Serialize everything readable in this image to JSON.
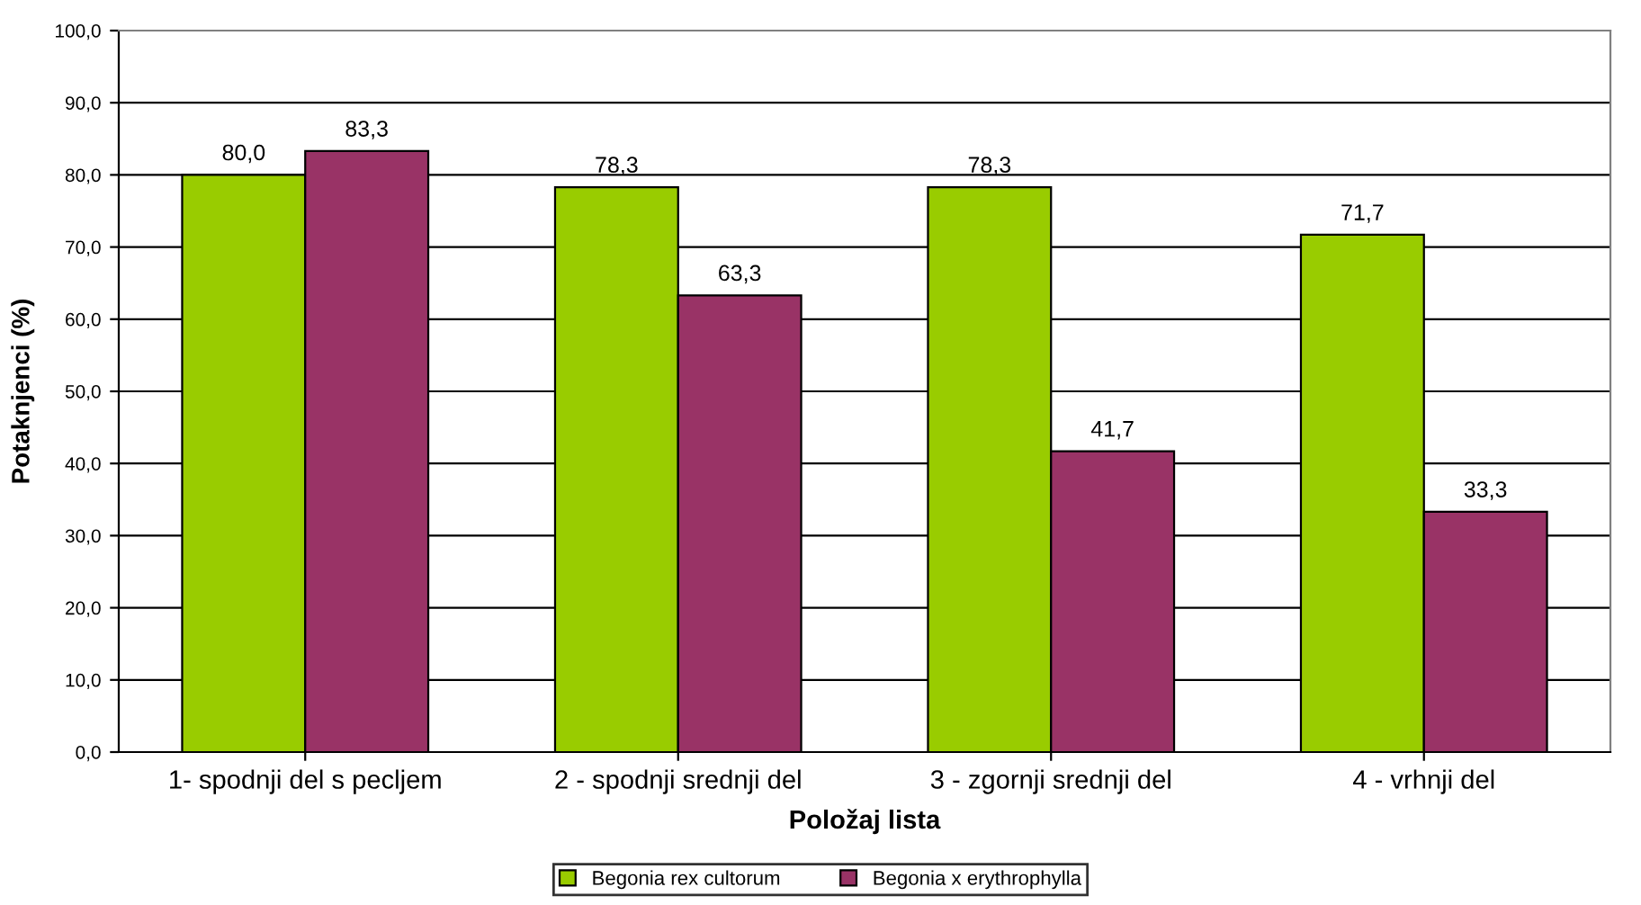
{
  "chart_data": {
    "type": "bar",
    "xlabel": "Položaj lista",
    "ylabel": "Potaknjenci (%)",
    "categories": [
      "1- spodnji del s pecljem",
      "2 - spodnji srednji del",
      "3 - zgornji srednji del",
      "4 - vrhnji del"
    ],
    "series": [
      {
        "name": "Begonia rex cultorum",
        "color": "#99cc00",
        "values": [
          80.0,
          78.3,
          78.3,
          71.7
        ],
        "value_labels": [
          "80,0",
          "78,3",
          "78,3",
          "71,7"
        ]
      },
      {
        "name": "Begonia x erythrophylla",
        "color": "#993366",
        "values": [
          83.3,
          63.3,
          41.7,
          33.3
        ],
        "value_labels": [
          "83,3",
          "63,3",
          "41,7",
          "33,3"
        ]
      }
    ],
    "ylim": [
      0,
      100
    ],
    "yticks": [
      {
        "value": 0,
        "label": "0,0"
      },
      {
        "value": 10,
        "label": "10,0"
      },
      {
        "value": 20,
        "label": "20,0"
      },
      {
        "value": 30,
        "label": "30,0"
      },
      {
        "value": 40,
        "label": "40,0"
      },
      {
        "value": 50,
        "label": "50,0"
      },
      {
        "value": 60,
        "label": "60,0"
      },
      {
        "value": 70,
        "label": "70,0"
      },
      {
        "value": 80,
        "label": "80,0"
      },
      {
        "value": 90,
        "label": "90,0"
      },
      {
        "value": 100,
        "label": "100,0"
      }
    ],
    "grid": "y",
    "legend": "bottom"
  }
}
